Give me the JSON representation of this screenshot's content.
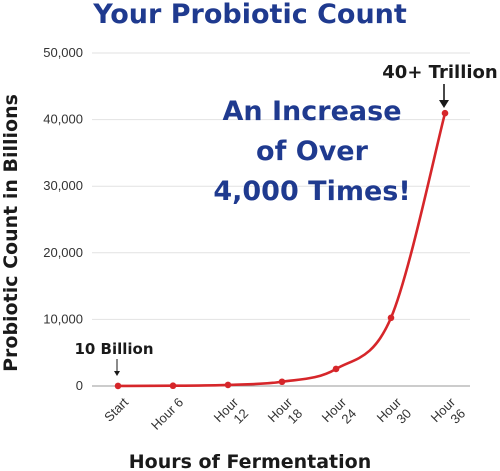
{
  "colors": {
    "title": "#1f3a8f",
    "callout": "#1f3a8f",
    "line": "#d6262a",
    "grid": "#e2e2e2",
    "axis": "#9a9a9a",
    "text": "#1a1a1a"
  },
  "chart_data": {
    "type": "line",
    "title": "Your Probiotic Count",
    "xlabel": "Hours of Fermentation",
    "ylabel": "Probiotic Count in Billions",
    "ylim": [
      0,
      50000
    ],
    "yticks": [
      "0",
      "10,000",
      "20,000",
      "30,000",
      "40,000",
      "50,000"
    ],
    "ytick_values": [
      0,
      10000,
      20000,
      30000,
      40000,
      50000
    ],
    "grid": true,
    "categories": [
      [
        "Start"
      ],
      [
        "Hour 6"
      ],
      [
        "Hour",
        "12"
      ],
      [
        "Hour",
        "18"
      ],
      [
        "Hour",
        "24"
      ],
      [
        "Hour",
        "30"
      ],
      [
        "Hour",
        "36"
      ]
    ],
    "values": [
      10,
      40,
      160,
      640,
      2560,
      10240,
      40960
    ],
    "annotations": {
      "start": "10 Billion",
      "end": "40+ Trillion",
      "callout": [
        "An Increase",
        "of Over",
        "4,000 Times!"
      ]
    }
  }
}
